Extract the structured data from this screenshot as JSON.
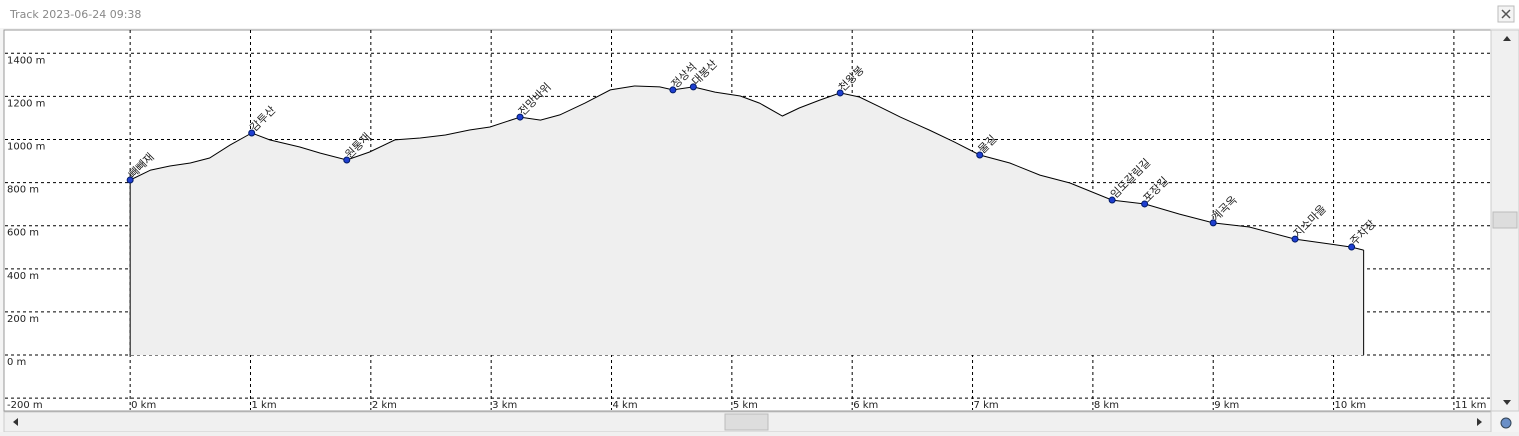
{
  "window_title": "Track 2023-06-24 09:38",
  "chart_data": {
    "type": "area",
    "x": [
      0,
      0.17,
      0.33,
      0.5,
      0.66,
      0.83,
      1.01,
      1.16,
      1.41,
      1.58,
      1.8,
      1.99,
      2.2,
      2.41,
      2.62,
      2.82,
      2.99,
      3.24,
      3.41,
      3.57,
      3.78,
      3.99,
      4.19,
      4.4,
      4.51,
      4.68,
      4.86,
      5.07,
      5.23,
      5.42,
      5.56,
      5.73,
      5.9,
      6.06,
      6.23,
      6.4,
      6.64,
      6.85,
      7.06,
      7.31,
      7.56,
      7.81,
      8.16,
      8.43,
      8.72,
      9.0,
      9.3,
      9.68,
      9.97,
      10.15,
      10.25
    ],
    "values": [
      812,
      858,
      877,
      891,
      914,
      974,
      1030,
      998,
      965,
      937,
      905,
      942,
      998,
      1007,
      1021,
      1044,
      1058,
      1104,
      1090,
      1114,
      1169,
      1230,
      1248,
      1244,
      1230,
      1244,
      1220,
      1202,
      1169,
      1109,
      1146,
      1183,
      1216,
      1197,
      1151,
      1104,
      1044,
      988,
      928,
      891,
      835,
      798,
      719,
      701,
      654,
      613,
      594,
      538,
      515,
      501,
      487
    ],
    "color": "#efefef",
    "line_color": "#000000",
    "marker_color": "#1f3fd0",
    "waypoints": [
      {
        "name": "빼빼재",
        "x": 0,
        "value": 812
      },
      {
        "name": "감투산",
        "x": 1.01,
        "value": 1030
      },
      {
        "name": "원통재",
        "x": 1.8,
        "value": 905
      },
      {
        "name": "전망바위",
        "x": 3.24,
        "value": 1104
      },
      {
        "name": "정상석",
        "x": 4.51,
        "value": 1230
      },
      {
        "name": "대봉산",
        "x": 4.68,
        "value": 1244
      },
      {
        "name": "천왕봉",
        "x": 5.9,
        "value": 1216
      },
      {
        "name": "물길",
        "x": 7.06,
        "value": 928
      },
      {
        "name": "임도갈림길",
        "x": 8.16,
        "value": 719
      },
      {
        "name": "포장길",
        "x": 8.43,
        "value": 701
      },
      {
        "name": "계곡옥",
        "x": 9.0,
        "value": 613
      },
      {
        "name": "지소마을",
        "x": 9.68,
        "value": 538
      },
      {
        "name": "주차장",
        "x": 10.15,
        "value": 501
      }
    ],
    "xlim": [
      -1.04,
      11.3
    ],
    "ylim": [
      -255,
      1508
    ],
    "xticks": [
      {
        "value": 0,
        "label": "0 km"
      },
      {
        "value": 1,
        "label": "1 km"
      },
      {
        "value": 2,
        "label": "2 km"
      },
      {
        "value": 3,
        "label": "3 km"
      },
      {
        "value": 4,
        "label": "4 km"
      },
      {
        "value": 5,
        "label": "5 km"
      },
      {
        "value": 6,
        "label": "6 km"
      },
      {
        "value": 7,
        "label": "7 km"
      },
      {
        "value": 8,
        "label": "8 km"
      },
      {
        "value": 9,
        "label": "9 km"
      },
      {
        "value": 10,
        "label": "10 km"
      },
      {
        "value": 11,
        "label": "11 km"
      }
    ],
    "yticks": [
      {
        "value": -200,
        "label": "-200 m"
      },
      {
        "value": 0,
        "label": "0 m"
      },
      {
        "value": 200,
        "label": "200 m"
      },
      {
        "value": 400,
        "label": "400 m"
      },
      {
        "value": 600,
        "label": "600 m"
      },
      {
        "value": 800,
        "label": "800 m"
      },
      {
        "value": 1000,
        "label": "1000 m"
      },
      {
        "value": 1200,
        "label": "1200 m"
      },
      {
        "value": 1400,
        "label": "1400 m"
      }
    ],
    "grid": true
  }
}
